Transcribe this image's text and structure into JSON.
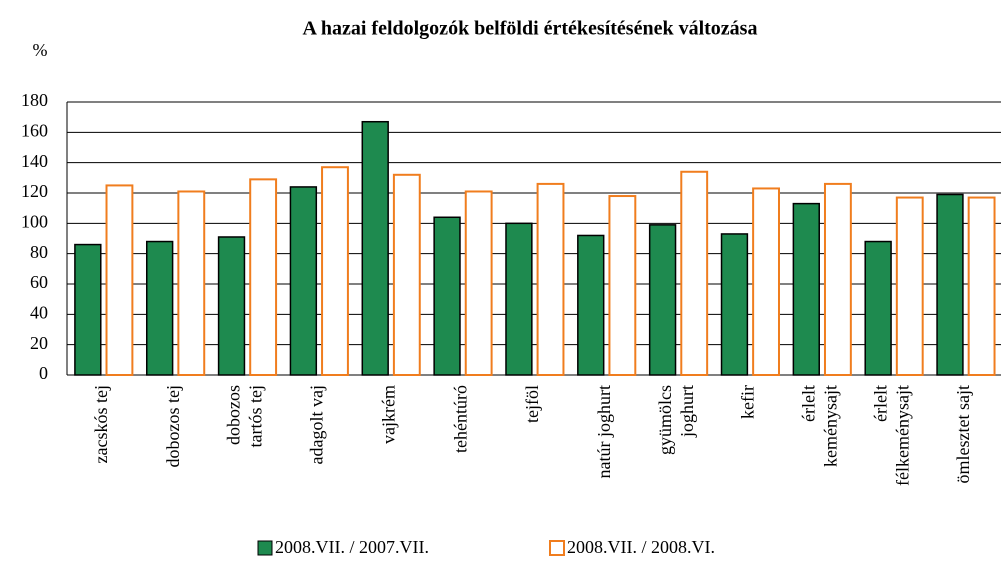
{
  "chart_data": {
    "type": "bar",
    "title": "A hazai feldolgozók belföldi értékesítésének változása",
    "y_label": "%",
    "categories": [
      [
        "zacskós tej"
      ],
      [
        "dobozos tej"
      ],
      [
        "dobozos",
        "tartós tej"
      ],
      [
        "adagolt vaj"
      ],
      [
        "vajkrém"
      ],
      [
        "tehéntúró"
      ],
      [
        "tejföl"
      ],
      [
        "natúr joghurt"
      ],
      [
        "gyümölcs",
        "joghurt"
      ],
      [
        "kefir"
      ],
      [
        "érlelt",
        "keménysajt"
      ],
      [
        "érlelt",
        "félkeménysajt"
      ],
      [
        "ömlesztet sajt"
      ]
    ],
    "series": [
      {
        "name": "2008.VII. / 2007.VII.",
        "color": "#1e8a4f",
        "values": [
          86,
          88,
          91,
          124,
          167,
          104,
          100,
          92,
          99,
          93,
          113,
          88,
          119
        ]
      },
      {
        "name": "2008.VII. / 2008.VI.",
        "color": "#f07d1e",
        "values": [
          125,
          121,
          129,
          137,
          132,
          121,
          126,
          118,
          134,
          123,
          126,
          117,
          117
        ]
      }
    ],
    "ylim": [
      0,
      180
    ],
    "yticks": [
      0,
      20,
      40,
      60,
      80,
      100,
      120,
      140,
      160,
      180
    ],
    "grid": true
  }
}
